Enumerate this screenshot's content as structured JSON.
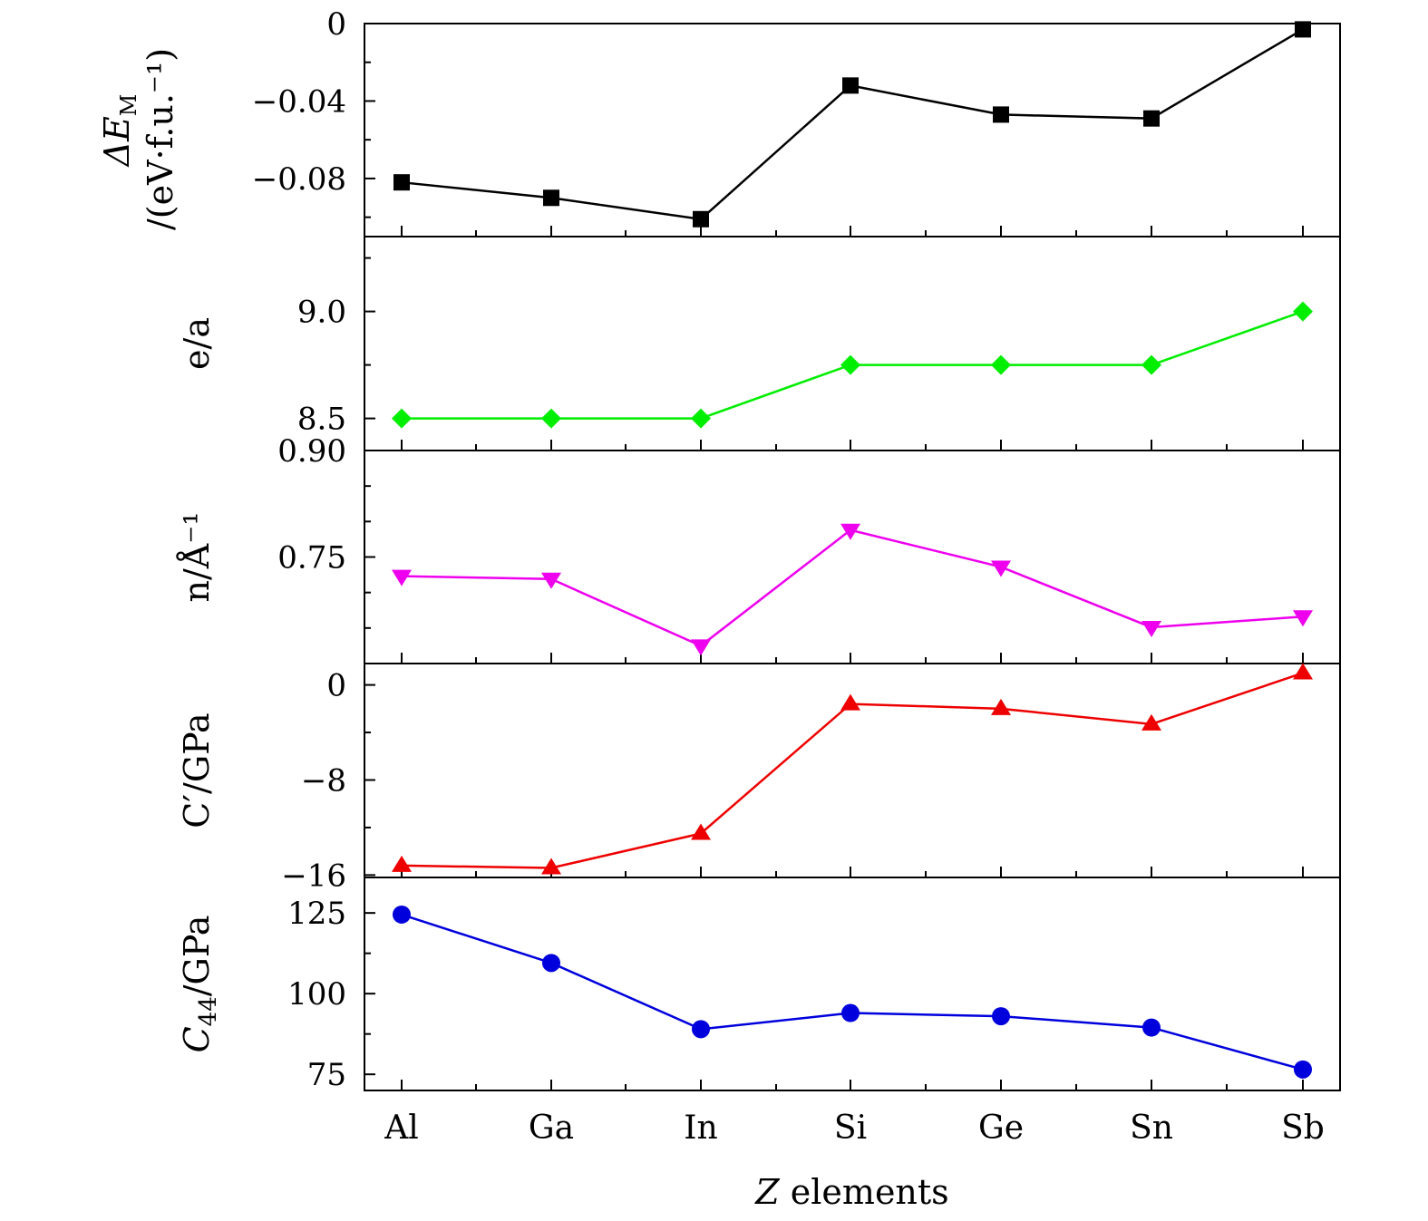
{
  "chart_data": {
    "type": "line",
    "categories": [
      "Al",
      "Ga",
      "In",
      "Si",
      "Ge",
      "Sn",
      "Sb"
    ],
    "xlabel": {
      "var": "Z",
      "rest": " elements"
    },
    "panels": [
      {
        "id": "dEM",
        "ylabel_lines": [
          "ΔEₘ",
          "/(eV·f.u.⁻¹)"
        ],
        "ylabel_parts": {
          "line1_main": "ΔE",
          "line1_sub": "M",
          "line2": "/(eV·f.u.⁻¹)"
        },
        "ylim": [
          -0.11,
          0.0
        ],
        "major_ticks": [
          0,
          -0.04,
          -0.08
        ],
        "tick_labels": [
          "0",
          "−0.04",
          "−0.08"
        ],
        "minor_step": 0.02,
        "color": "#000000",
        "marker": "square",
        "values": [
          -0.082,
          -0.09,
          -0.101,
          -0.032,
          -0.047,
          -0.049,
          -0.003
        ]
      },
      {
        "id": "ea",
        "ylabel": "e/a",
        "ylim": [
          8.35,
          9.35
        ],
        "major_ticks": [
          9.0,
          8.5
        ],
        "tick_labels": [
          "9.0",
          "8.5"
        ],
        "minor_step": 0.25,
        "color": "#00ee00",
        "marker": "diamond",
        "values": [
          8.5,
          8.5,
          8.5,
          8.75,
          8.75,
          8.75,
          9.0
        ]
      },
      {
        "id": "n",
        "ylabel": "n/Å⁻¹",
        "ylim": [
          0.6,
          0.9
        ],
        "major_ticks": [
          0.9,
          0.75
        ],
        "tick_labels": [
          "0.90",
          "0.75"
        ],
        "minor_step": 0.05,
        "color": "#ee00ee",
        "marker": "triangle-down",
        "values": [
          0.723,
          0.719,
          0.625,
          0.788,
          0.736,
          0.651,
          0.666
        ]
      },
      {
        "id": "Cp",
        "ylabel": "C′/GPa",
        "ylim": [
          -16.2,
          1.8
        ],
        "major_ticks": [
          0,
          -8,
          -16
        ],
        "tick_labels": [
          "0",
          "−8",
          "−16"
        ],
        "minor_step": 4,
        "color": "#ee0000",
        "marker": "triangle-up",
        "values": [
          -15.2,
          -15.4,
          -12.5,
          -1.6,
          -2.0,
          -3.3,
          1.0
        ]
      },
      {
        "id": "C44",
        "ylabel_parts": {
          "main": "C",
          "sub": "44",
          "rest": "/GPa"
        },
        "ylim": [
          70,
          136
        ],
        "major_ticks": [
          125,
          100,
          75
        ],
        "tick_labels": [
          "125",
          "100",
          "75"
        ],
        "minor_step": 12.5,
        "color": "#0000dd",
        "marker": "circle",
        "values": [
          124.5,
          109.5,
          89.0,
          94.0,
          93.0,
          89.5,
          76.5
        ]
      }
    ]
  }
}
